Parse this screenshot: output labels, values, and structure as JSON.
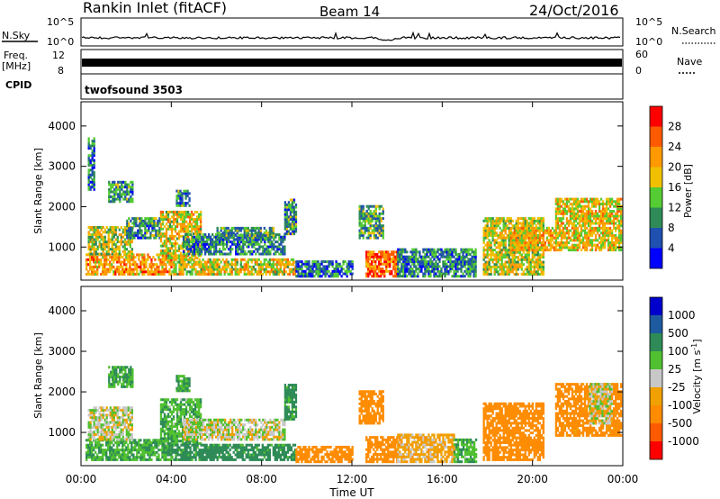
{
  "header": {
    "station": "Rankin Inlet (fitACF)",
    "beam": "Beam 14",
    "date": "24/Oct/2016"
  },
  "strips": {
    "nsky_label": "N.Sky",
    "nsky_ticks": [
      "10^5",
      "10^0"
    ],
    "nsearch_label": "N.Search",
    "nsearch_ticks": [
      "10^5",
      "10^0"
    ],
    "freq_label_1": "Freq.",
    "freq_label_2": "[MHz]",
    "freq_ticks": [
      "12",
      "8"
    ],
    "nave_label": "Nave",
    "nave_ticks": [
      "60",
      "0"
    ],
    "cpid_label": "CPID",
    "cpid_value": "twofsound 3503"
  },
  "colors": {
    "power": [
      "#0000ff",
      "#2050b0",
      "#2e8b57",
      "#55cc33",
      "#f0c000",
      "#ff9900",
      "#ff5a00",
      "#ff0000"
    ],
    "velocity": [
      "#ff0000",
      "#ff5a00",
      "#ff8c00",
      "#f0a000",
      "#c8c8c8",
      "#50c030",
      "#2e8b57",
      "#1e5aa0",
      "#0000cc"
    ],
    "gray": "#c8c8c8"
  },
  "chart_data": [
    {
      "type": "heatmap",
      "name": "power",
      "ylabel": "Slant Range [km]",
      "xlabel": "Time UT",
      "x_range_hours": [
        0,
        24
      ],
      "ylim_km": [
        180,
        4600
      ],
      "x_tick_labels": [
        "00:00",
        "04:00",
        "08:00",
        "12:00",
        "16:00",
        "20:00",
        "00:00"
      ],
      "y_tick_labels": [
        "1000",
        "2000",
        "3000",
        "4000"
      ],
      "y_tick_values": [
        1000,
        2000,
        3000,
        4000
      ],
      "colorbar": {
        "label": "Power [dB]",
        "tick_labels": [
          "4",
          "8",
          "12",
          "16",
          "20",
          "24",
          "28"
        ],
        "tick_values": [
          4,
          8,
          12,
          16,
          20,
          24,
          28
        ],
        "range": [
          0,
          32
        ]
      },
      "regions": [
        {
          "t": [
            0.2,
            4.0
          ],
          "r": [
            300,
            800
          ],
          "v": 22
        },
        {
          "t": [
            0.3,
            2.3
          ],
          "r": [
            800,
            1500
          ],
          "v": 16
        },
        {
          "t": [
            2.0,
            3.5
          ],
          "r": [
            1200,
            1700
          ],
          "v": 10
        },
        {
          "t": [
            3.5,
            5.3
          ],
          "r": [
            700,
            1900
          ],
          "v": 18
        },
        {
          "t": [
            4.0,
            9.5
          ],
          "r": [
            300,
            700
          ],
          "v": 18
        },
        {
          "t": [
            4.5,
            9.0
          ],
          "r": [
            800,
            1300
          ],
          "v": 9
        },
        {
          "t": [
            6.0,
            8.5
          ],
          "r": [
            1200,
            1500
          ],
          "v": 11
        },
        {
          "t": [
            9.5,
            12.0
          ],
          "r": [
            250,
            650
          ],
          "v": 8
        },
        {
          "t": [
            12.6,
            14.0
          ],
          "r": [
            250,
            900
          ],
          "v": 26
        },
        {
          "t": [
            12.3,
            13.4
          ],
          "r": [
            1200,
            2000
          ],
          "v": 11
        },
        {
          "t": [
            14.0,
            17.5
          ],
          "r": [
            250,
            950
          ],
          "v": 9
        },
        {
          "t": [
            17.8,
            20.5
          ],
          "r": [
            300,
            1700
          ],
          "v": 17
        },
        {
          "t": [
            19.0,
            21.0
          ],
          "r": [
            900,
            1500
          ],
          "v": 20
        },
        {
          "t": [
            21.0,
            23.9
          ],
          "r": [
            900,
            2200
          ],
          "v": 19
        },
        {
          "t": [
            1.2,
            2.3
          ],
          "r": [
            2100,
            2600
          ],
          "v": 10
        },
        {
          "t": [
            4.2,
            4.8
          ],
          "r": [
            2000,
            2400
          ],
          "v": 10
        },
        {
          "t": [
            9.0,
            9.5
          ],
          "r": [
            1300,
            2200
          ],
          "v": 10
        },
        {
          "t": [
            0.3,
            0.6
          ],
          "r": [
            2400,
            3700
          ],
          "v": 8
        }
      ]
    },
    {
      "type": "heatmap",
      "name": "velocity",
      "ylabel": "Slant Range [km]",
      "xlabel": "Time UT",
      "x_range_hours": [
        0,
        24
      ],
      "ylim_km": [
        180,
        4600
      ],
      "x_tick_labels": [
        "00:00",
        "04:00",
        "08:00",
        "12:00",
        "16:00",
        "20:00",
        "00:00"
      ],
      "y_tick_labels": [
        "1000",
        "2000",
        "3000",
        "4000"
      ],
      "y_tick_values": [
        1000,
        2000,
        3000,
        4000
      ],
      "colorbar": {
        "label": "Velocity [m s",
        "label_sup": "-1",
        "label_end": "]",
        "tick_labels": [
          "-1000",
          "-500",
          "-100",
          "-25",
          "25",
          "100",
          "500",
          "1000"
        ],
        "tick_values": [
          -1000,
          -500,
          -100,
          -25,
          25,
          100,
          500,
          1000
        ]
      },
      "regions": [
        {
          "t": [
            0.2,
            4.0
          ],
          "r": [
            300,
            800
          ],
          "v": 100
        },
        {
          "t": [
            0.3,
            2.3
          ],
          "r": [
            800,
            1600
          ],
          "v": 0
        },
        {
          "t": [
            3.5,
            5.3
          ],
          "r": [
            700,
            1800
          ],
          "v": 80
        },
        {
          "t": [
            4.0,
            9.5
          ],
          "r": [
            300,
            700
          ],
          "v": 150
        },
        {
          "t": [
            4.5,
            9.0
          ],
          "r": [
            800,
            1300
          ],
          "v": 0
        },
        {
          "t": [
            9.5,
            12.0
          ],
          "r": [
            250,
            650
          ],
          "v": -200
        },
        {
          "t": [
            12.6,
            14.0
          ],
          "r": [
            250,
            900
          ],
          "v": -250
        },
        {
          "t": [
            12.3,
            13.4
          ],
          "r": [
            1200,
            2000
          ],
          "v": -200
        },
        {
          "t": [
            14.0,
            16.5
          ],
          "r": [
            250,
            950
          ],
          "v": -60
        },
        {
          "t": [
            16.5,
            17.5
          ],
          "r": [
            250,
            800
          ],
          "v": 80
        },
        {
          "t": [
            17.8,
            20.5
          ],
          "r": [
            300,
            1700
          ],
          "v": -300
        },
        {
          "t": [
            21.0,
            23.9
          ],
          "r": [
            900,
            2200
          ],
          "v": -150
        },
        {
          "t": [
            22.5,
            23.5
          ],
          "r": [
            1200,
            2200
          ],
          "v": 0
        },
        {
          "t": [
            1.2,
            2.3
          ],
          "r": [
            2100,
            2600
          ],
          "v": 100
        },
        {
          "t": [
            4.2,
            4.8
          ],
          "r": [
            2000,
            2400
          ],
          "v": 100
        },
        {
          "t": [
            9.0,
            9.5
          ],
          "r": [
            1300,
            2200
          ],
          "v": 150
        }
      ]
    }
  ]
}
